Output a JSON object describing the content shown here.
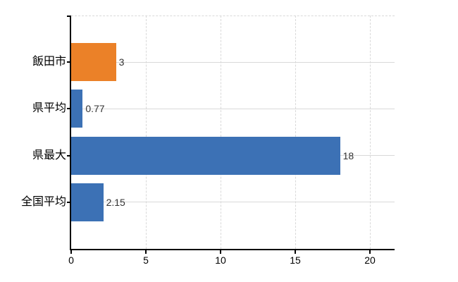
{
  "chart_data": {
    "type": "bar",
    "orientation": "horizontal",
    "title": "",
    "xlabel": "",
    "ylabel": "",
    "categories": [
      "飯田市",
      "県平均",
      "県最大",
      "全国平均"
    ],
    "values": [
      3,
      0.77,
      18,
      2.15
    ],
    "value_labels": [
      "3",
      "0.77",
      "18",
      "2.15"
    ],
    "bar_colors": [
      "#EB8128",
      "#3C71B5",
      "#3C71B5",
      "#3C71B5"
    ],
    "x_tick_labels": [
      "0",
      "5",
      "10",
      "15",
      "20"
    ],
    "x_tick_values": [
      0,
      5,
      10,
      15,
      20
    ],
    "xlim": [
      0,
      21.65
    ],
    "grid": true,
    "legend": false
  },
  "style": {
    "background": "#FFFFFF",
    "axis_color": "#000000",
    "grid_color": "#D9D9D9",
    "value_label_color": "#333333",
    "category_label_color": "#000000",
    "tick_label_color": "#000000"
  }
}
